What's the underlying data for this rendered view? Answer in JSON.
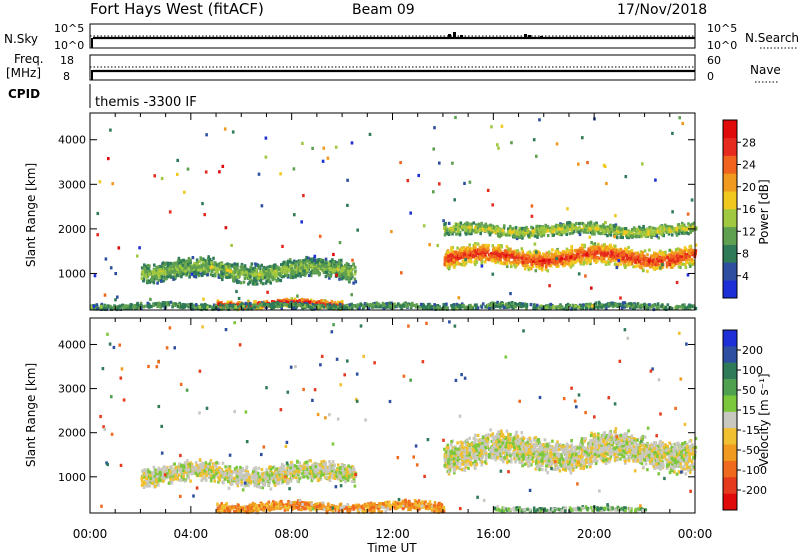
{
  "header": {
    "station": "Fort Hays West (fitACF)",
    "beam": "Beam 09",
    "date": "17/Nov/2018"
  },
  "top_panels": {
    "nsky_label": "N.Sky",
    "nsky_ticks": [
      "10^5",
      "10^0"
    ],
    "nsearch_label": "N.Search",
    "nsearch_ticks": [
      "10^5",
      "10^0"
    ],
    "freq_label": "Freq.",
    "freq_unit": "[MHz]",
    "freq_ticks": [
      "18",
      "8"
    ],
    "nave_label": "Nave",
    "nave_ticks": [
      "60",
      "0"
    ],
    "cpid_label": "CPID",
    "cpid_value": "themis -3300 IF"
  },
  "axes": {
    "xlabel": "Time UT",
    "x_ticks": [
      "00:00",
      "04:00",
      "08:00",
      "12:00",
      "16:00",
      "20:00",
      "00:00"
    ],
    "ylabel": "Slant Range [km]",
    "y_ticks": [
      "1000",
      "2000",
      "3000",
      "4000"
    ]
  },
  "colors": {
    "power": [
      "#1f2fd8",
      "#2e4fa0",
      "#2f7a57",
      "#5fa050",
      "#a0c840",
      "#f0c81e",
      "#f09a1e",
      "#f0641e",
      "#e62a1e",
      "#e00a0a"
    ],
    "velocity_pos": [
      "#1f2fd8",
      "#2e4fa0",
      "#2f7a57",
      "#4fa04f",
      "#7cc83c"
    ],
    "velocity_mid": "#c8c8c0",
    "velocity_neg": [
      "#f0c030",
      "#f09a1e",
      "#f06a1e",
      "#e63a1e",
      "#e00a0a"
    ]
  },
  "chart_data": [
    {
      "type": "heatmap",
      "title": "",
      "colorbar_label": "Power [dB]",
      "colorbar_ticks": [
        "4",
        "8",
        "12",
        "16",
        "20",
        "24",
        "28"
      ],
      "x_range_hours": [
        0,
        24
      ],
      "y_range_km": [
        180,
        4600
      ],
      "x_ticks": [
        "00:00",
        "04:00",
        "08:00",
        "12:00",
        "16:00",
        "20:00",
        "00:00"
      ],
      "y_ticks": [
        "1000",
        "2000",
        "3000",
        "4000"
      ],
      "features": [
        {
          "t_start": 2.0,
          "t_end": 10.5,
          "range_center_km": 1100,
          "range_width_km": 500,
          "power_db": 12
        },
        {
          "t_start": 5.0,
          "t_end": 10.0,
          "range_center_km": 350,
          "range_width_km": 200,
          "power_db": 26
        },
        {
          "t_start": 0.0,
          "t_end": 24.0,
          "range_center_km": 300,
          "range_width_km": 150,
          "power_db": 10
        },
        {
          "t_start": 14.0,
          "t_end": 24.0,
          "range_center_km": 1400,
          "range_width_km": 500,
          "power_db": 24
        },
        {
          "t_start": 14.0,
          "t_end": 24.0,
          "range_center_km": 2000,
          "range_width_km": 300,
          "power_db": 14
        }
      ]
    },
    {
      "type": "heatmap",
      "title": "",
      "colorbar_label": "Velocity [m s^-1]",
      "colorbar_ticks": [
        "200",
        "100",
        "50",
        "15",
        "-15",
        "-50",
        "-100",
        "-200"
      ],
      "x_range_hours": [
        0,
        24
      ],
      "y_range_km": [
        180,
        4600
      ],
      "x_ticks": [
        "00:00",
        "04:00",
        "08:00",
        "12:00",
        "16:00",
        "20:00",
        "00:00"
      ],
      "y_ticks": [
        "1000",
        "2000",
        "3000",
        "4000"
      ],
      "features": [
        {
          "t_start": 2.0,
          "t_end": 10.5,
          "range_center_km": 1100,
          "range_width_km": 500,
          "velocity": 0
        },
        {
          "t_start": 5.0,
          "t_end": 14.0,
          "range_center_km": 350,
          "range_width_km": 250,
          "velocity": -40
        },
        {
          "t_start": 14.0,
          "t_end": 24.0,
          "range_center_km": 1600,
          "range_width_km": 800,
          "velocity": 0
        },
        {
          "t_start": 16.0,
          "t_end": 22.0,
          "range_center_km": 300,
          "range_width_km": 100,
          "velocity": 30
        }
      ]
    }
  ]
}
